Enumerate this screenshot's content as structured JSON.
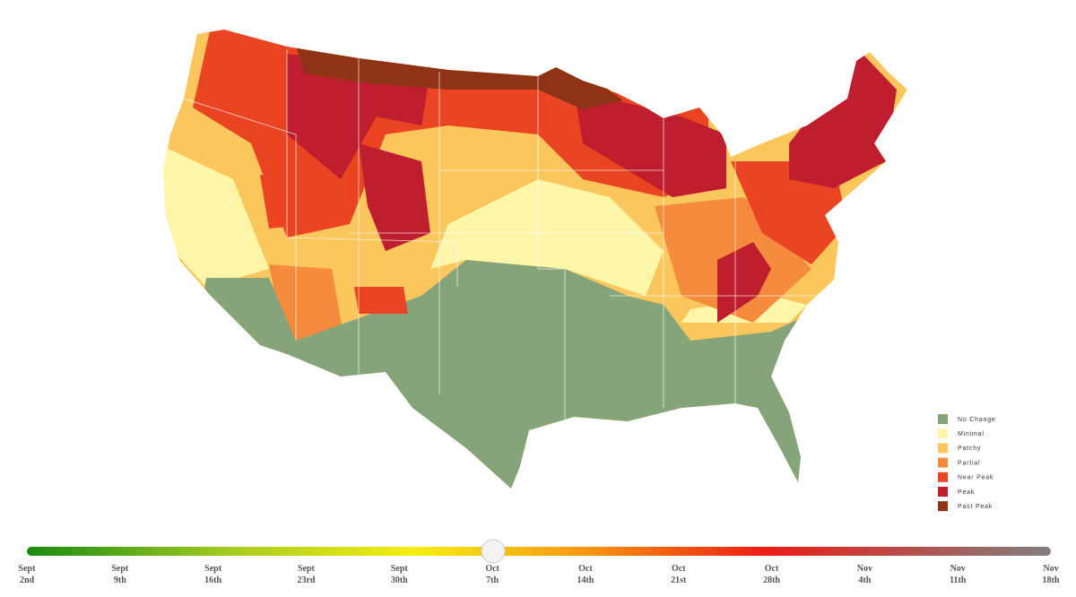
{
  "legend": [
    {
      "label": "No Change",
      "color": "#85a47a"
    },
    {
      "label": "Minimal",
      "color": "#fdf5a8"
    },
    {
      "label": "Patchy",
      "color": "#fbc65c"
    },
    {
      "label": "Partial",
      "color": "#f58b3c"
    },
    {
      "label": "Near Peak",
      "color": "#ea4423"
    },
    {
      "label": "Peak",
      "color": "#be1e2d"
    },
    {
      "label": "Past Peak",
      "color": "#8e3316"
    }
  ],
  "slider": {
    "dates": [
      {
        "month": "Sept",
        "day": "2nd"
      },
      {
        "month": "Sept",
        "day": "9th"
      },
      {
        "month": "Sept",
        "day": "16th"
      },
      {
        "month": "Sept",
        "day": "23rd"
      },
      {
        "month": "Sept",
        "day": "30th"
      },
      {
        "month": "Oct",
        "day": "7th"
      },
      {
        "month": "Oct",
        "day": "14th"
      },
      {
        "month": "Oct",
        "day": "21st"
      },
      {
        "month": "Oct",
        "day": "28th"
      },
      {
        "month": "Nov",
        "day": "4th"
      },
      {
        "month": "Nov",
        "day": "11th"
      },
      {
        "month": "Nov",
        "day": "18th"
      }
    ]
  }
}
